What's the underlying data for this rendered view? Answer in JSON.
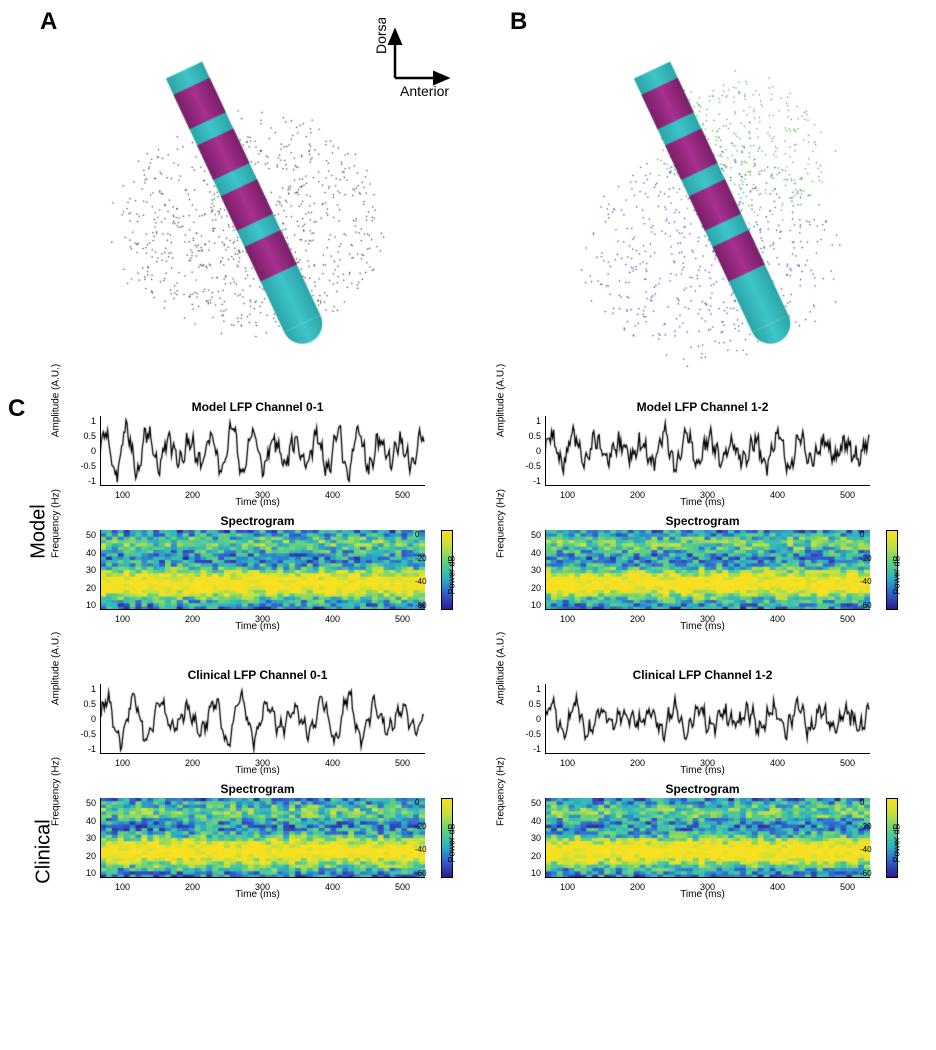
{
  "labels": {
    "A": "A",
    "B": "B",
    "C": "C",
    "model": "Model",
    "clinical": "Clinical",
    "dorsal": "Dorsal",
    "anterior": "Anterior"
  },
  "electrode": {
    "shaft_color": "#3fc5c9",
    "contact_color": "#a8318f",
    "tip_color": "#3fc5c9",
    "num_contacts": 4,
    "angle_deg": -25,
    "point_cloud_A": {
      "color": "#303030",
      "n": 900
    },
    "point_cloud_B": {
      "top": {
        "color": "#2fa82f",
        "n": 400
      },
      "bottom": {
        "color": "#1c2fb8",
        "n": 600
      }
    }
  },
  "charts": {
    "xlabel": "Time (ms)",
    "lfp_ylabel": "Amplitude (A.U.)",
    "spec_ylabel": "Frequency (Hz)",
    "cbar_label": "Power dB",
    "x_ticks": [
      100,
      200,
      300,
      400,
      500
    ],
    "xlim": [
      30,
      580
    ],
    "lfp_ylim": [
      -1,
      1
    ],
    "lfp_yticks": [
      -1,
      -0.5,
      0,
      0.5,
      1
    ],
    "spec_ylim": [
      5,
      50
    ],
    "spec_yticks": [
      10,
      20,
      30,
      40,
      50
    ],
    "cbar_range": [
      -60,
      0
    ],
    "cbar_ticks": [
      0,
      -20,
      -40,
      -60
    ],
    "lfp_height": 90,
    "spec_height": 100,
    "spec_title": "Spectrogram",
    "panels": [
      {
        "key": "model_01",
        "title": "Model LFP Channel 0-1",
        "lfp": {
          "freq": 28,
          "amp": 0.75,
          "noise": 0.22,
          "seed": 1
        }
      },
      {
        "key": "model_12",
        "title": "Model LFP Channel 1-2",
        "lfp": {
          "freq": 26,
          "amp": 0.55,
          "noise": 0.25,
          "seed": 2
        }
      },
      {
        "key": "clin_01",
        "title": "Clinical LFP Channel 0-1",
        "lfp": {
          "freq": 22,
          "amp": 0.75,
          "noise": 0.18,
          "seed": 3
        }
      },
      {
        "key": "clin_12",
        "title": "Clinical LFP Channel 1-2",
        "lfp": {
          "freq": 24,
          "amp": 0.45,
          "noise": 0.22,
          "seed": 4
        }
      }
    ],
    "spectro_colormap": [
      "#2d1a8a",
      "#3060d0",
      "#2cb5c0",
      "#60d080",
      "#c0e040",
      "#f8e020"
    ]
  }
}
